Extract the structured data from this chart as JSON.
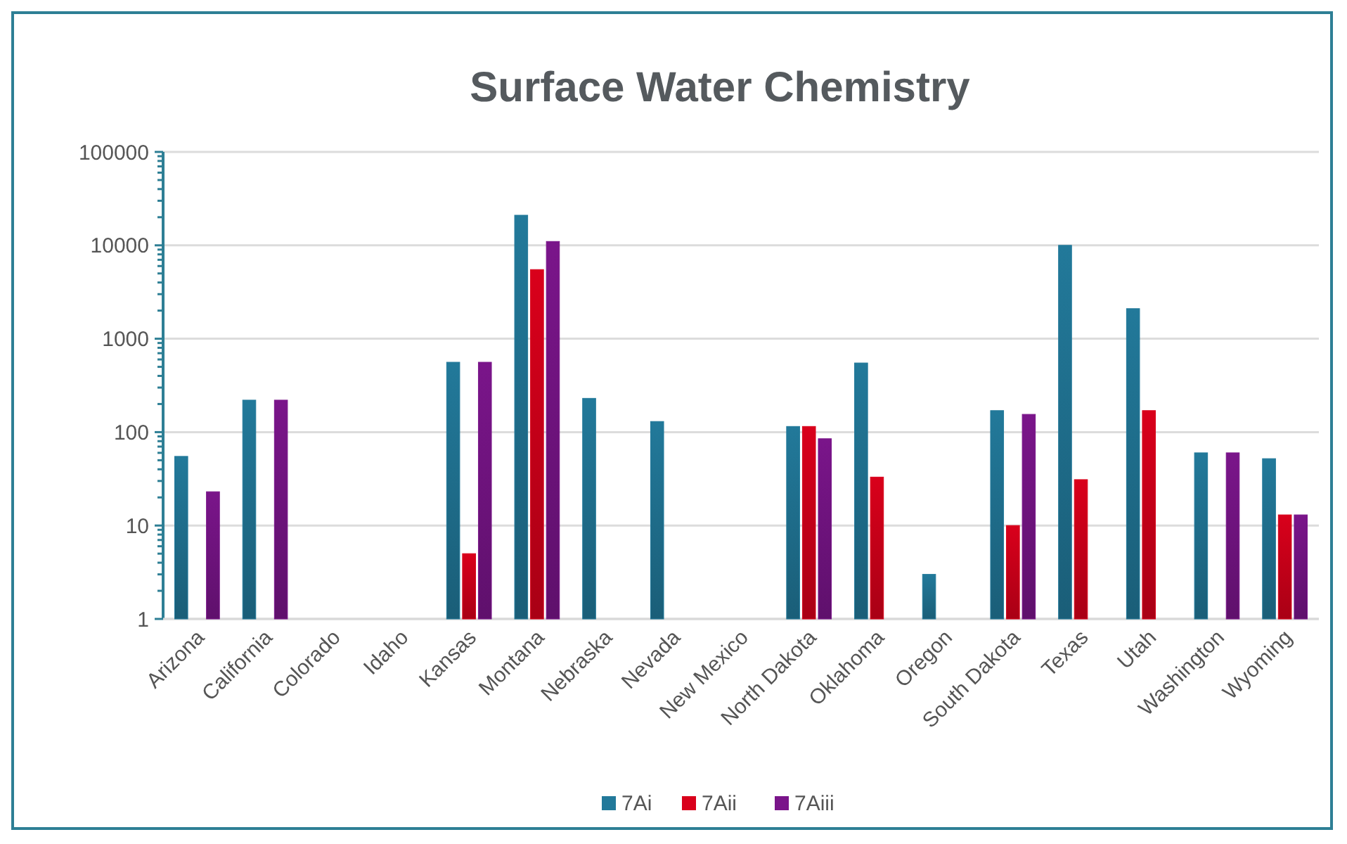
{
  "chart_data": {
    "type": "bar",
    "title": "Surface Water Chemistry",
    "log": true,
    "grid": "y",
    "legend": "bottom",
    "categories": [
      "Arizona",
      "California",
      "Colorado",
      "Idaho",
      "Kansas",
      "Montana",
      "Nebraska",
      "Nevada",
      "New Mexico",
      "North Dakota",
      "Oklahoma",
      "Oregon",
      "South Dakota",
      "Texas",
      "Utah",
      "Washington",
      "Wyoming"
    ],
    "series": [
      {
        "name": "7Ai",
        "color": "#22799a",
        "values": [
          55,
          220,
          null,
          null,
          560,
          21000,
          230,
          130,
          null,
          115,
          550,
          3,
          170,
          10000,
          2100,
          60,
          52
        ]
      },
      {
        "name": "7Aii",
        "color": "#d9001b",
        "values": [
          null,
          null,
          null,
          null,
          5,
          5500,
          null,
          null,
          null,
          115,
          33,
          null,
          10,
          31,
          170,
          null,
          13
        ]
      },
      {
        "name": "7Aiii",
        "color": "#7a158a",
        "values": [
          23,
          220,
          null,
          null,
          560,
          11000,
          null,
          null,
          null,
          85,
          null,
          null,
          155,
          null,
          null,
          60,
          13
        ]
      }
    ],
    "ylim": [
      1,
      100000
    ],
    "yticks": [
      1,
      {
        "value": 2,
        "label": null
      },
      {
        "value": 3,
        "label": null
      },
      {
        "value": 4,
        "label": null
      },
      {
        "value": 5,
        "label": null
      },
      {
        "value": 6,
        "label": null
      },
      {
        "value": 7,
        "label": null
      },
      {
        "value": 8,
        "label": null
      },
      {
        "value": 9,
        "label": null
      },
      10,
      {
        "value": 20,
        "label": null
      },
      {
        "value": 30,
        "label": null
      },
      {
        "value": 40,
        "label": null
      },
      {
        "value": 50,
        "label": null
      },
      {
        "value": 60,
        "label": null
      },
      {
        "value": 70,
        "label": null
      },
      {
        "value": 80,
        "label": null
      },
      {
        "value": 90,
        "label": null
      },
      100,
      {
        "value": 200,
        "label": null
      },
      {
        "value": 300,
        "label": null
      },
      {
        "value": 400,
        "label": null
      },
      {
        "value": 500,
        "label": null
      },
      {
        "value": 600,
        "label": null
      },
      {
        "value": 700,
        "label": null
      },
      {
        "value": 800,
        "label": null
      },
      {
        "value": 900,
        "label": null
      },
      1000,
      {
        "value": 2000,
        "label": null
      },
      {
        "value": 3000,
        "label": null
      },
      {
        "value": 4000,
        "label": null
      },
      {
        "value": 5000,
        "label": null
      },
      {
        "value": 6000,
        "label": null
      },
      {
        "value": 7000,
        "label": null
      },
      {
        "value": 8000,
        "label": null
      },
      {
        "value": 9000,
        "label": null
      },
      10000,
      {
        "value": 20000,
        "label": null
      },
      {
        "value": 30000,
        "label": null
      },
      {
        "value": 40000,
        "label": null
      },
      {
        "value": 50000,
        "label": null
      },
      {
        "value": 60000,
        "label": null
      },
      {
        "value": 70000,
        "label": null
      },
      {
        "value": 80000,
        "label": null
      },
      {
        "value": 90000,
        "label": null
      },
      100000
    ]
  }
}
